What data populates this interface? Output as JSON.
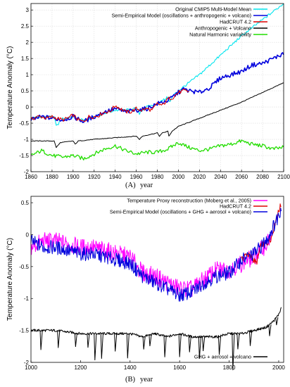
{
  "chart_data": [
    {
      "type": "line",
      "panel_label": "(A)",
      "xlabel": "year",
      "ylabel": "Temperature Anomaly (°C)",
      "xlim": [
        1860,
        2100
      ],
      "ylim": [
        -2,
        3.2
      ],
      "xticks": [
        1860,
        1880,
        1900,
        1920,
        1940,
        1960,
        1980,
        2000,
        2020,
        2040,
        2060,
        2080,
        2100
      ],
      "yticks": [
        -2,
        -1.5,
        -1,
        -0.5,
        0,
        0.5,
        1,
        1.5,
        2,
        2.5,
        3
      ],
      "grid": true,
      "legend_position": "top-right",
      "series": [
        {
          "name": "Original CMIP5 Multi-Model Mean",
          "color": "#00e5ee",
          "x": [
            1860,
            1875,
            1882,
            1884,
            1890,
            1900,
            1910,
            1920,
            1940,
            1950,
            1960,
            1963,
            1965,
            1970,
            1980,
            1990,
            1992,
            1995,
            2000,
            2010,
            2020,
            2040,
            2060,
            2080,
            2100
          ],
          "y": [
            -0.35,
            -0.3,
            -0.3,
            -0.6,
            -0.35,
            -0.3,
            -0.4,
            -0.3,
            -0.1,
            -0.1,
            -0.05,
            -0.2,
            -0.1,
            0.0,
            0.1,
            0.3,
            0.15,
            0.35,
            0.5,
            0.75,
            1.0,
            1.6,
            2.2,
            2.7,
            3.2
          ]
        },
        {
          "name": "Semi-Empirical Model (oscillations + anthropogenic + volcano)",
          "color": "#0000dd",
          "x": [
            1860,
            1870,
            1880,
            1890,
            1900,
            1910,
            1920,
            1930,
            1940,
            1950,
            1960,
            1970,
            1980,
            1990,
            2000,
            2005,
            2010,
            2020,
            2030,
            2040,
            2050,
            2060,
            2070,
            2080,
            2090,
            2100
          ],
          "y": [
            -0.4,
            -0.3,
            -0.35,
            -0.4,
            -0.3,
            -0.45,
            -0.3,
            -0.15,
            -0.05,
            -0.15,
            -0.1,
            -0.05,
            0.1,
            0.2,
            0.45,
            0.55,
            0.5,
            0.45,
            0.6,
            0.9,
            1.0,
            1.1,
            1.3,
            1.35,
            1.5,
            1.65
          ]
        },
        {
          "name": "HadCRUT 4.2",
          "color": "#dd0000",
          "x": [
            1860,
            1865,
            1870,
            1875,
            1880,
            1885,
            1890,
            1895,
            1900,
            1905,
            1910,
            1915,
            1920,
            1925,
            1930,
            1935,
            1940,
            1945,
            1950,
            1955,
            1960,
            1965,
            1970,
            1975,
            1980,
            1985,
            1990,
            1995,
            2000,
            2005,
            2010
          ],
          "y": [
            -0.4,
            -0.3,
            -0.3,
            -0.35,
            -0.3,
            -0.35,
            -0.4,
            -0.35,
            -0.25,
            -0.4,
            -0.45,
            -0.3,
            -0.3,
            -0.25,
            -0.15,
            -0.15,
            0.05,
            -0.05,
            -0.15,
            -0.15,
            -0.05,
            -0.1,
            -0.05,
            -0.1,
            0.1,
            0.05,
            0.25,
            0.3,
            0.45,
            0.5,
            0.48
          ]
        },
        {
          "name": "Anthropogenic + Volcano",
          "color": "#000000",
          "x": [
            1860,
            1875,
            1882,
            1884,
            1888,
            1900,
            1902,
            1905,
            1920,
            1940,
            1960,
            1963,
            1966,
            1980,
            1982,
            1985,
            1990,
            1991,
            1994,
            2000,
            2020,
            2040,
            2060,
            2080,
            2100
          ],
          "y": [
            -1.05,
            -1.05,
            -1.05,
            -1.25,
            -1.1,
            -1.05,
            -1.15,
            -1.05,
            -1.0,
            -0.95,
            -0.9,
            -1.0,
            -0.9,
            -0.8,
            -0.9,
            -0.8,
            -0.75,
            -0.9,
            -0.75,
            -0.6,
            -0.35,
            -0.1,
            0.15,
            0.45,
            0.75
          ]
        },
        {
          "name": "Natural Harmonic variability",
          "color": "#22dd00",
          "x": [
            1860,
            1870,
            1880,
            1890,
            1900,
            1910,
            1920,
            1930,
            1940,
            1950,
            1960,
            1970,
            1980,
            1990,
            2000,
            2010,
            2020,
            2030,
            2040,
            2050,
            2060,
            2070,
            2080,
            2090,
            2100
          ],
          "y": [
            -1.5,
            -1.35,
            -1.5,
            -1.55,
            -1.5,
            -1.6,
            -1.45,
            -1.3,
            -1.2,
            -1.35,
            -1.45,
            -1.4,
            -1.4,
            -1.3,
            -1.1,
            -1.25,
            -1.35,
            -1.3,
            -1.2,
            -1.15,
            -1.05,
            -1.15,
            -1.2,
            -1.3,
            -1.25
          ]
        }
      ]
    },
    {
      "type": "line",
      "panel_label": "(B)",
      "xlabel": "year",
      "ylabel": "Temperature Anomaly (°C)",
      "xlim": [
        1000,
        2020
      ],
      "ylim": [
        -2,
        0.6
      ],
      "xticks": [
        1000,
        1200,
        1400,
        1600,
        1800,
        2000
      ],
      "yticks": [
        -2,
        -1.5,
        -1,
        -0.5,
        0,
        0.5
      ],
      "grid": false,
      "series": [
        {
          "name": "Temperature Proxy reconstruction (Moberg et al., 2005)",
          "color": "#ff00ff",
          "legend_position": "top-right",
          "x": [
            1000,
            1050,
            1100,
            1150,
            1200,
            1250,
            1300,
            1350,
            1400,
            1450,
            1500,
            1550,
            1600,
            1650,
            1700,
            1750,
            1800,
            1850,
            1900,
            1950,
            1979
          ],
          "y": [
            -0.2,
            -0.1,
            -0.1,
            -0.15,
            -0.2,
            -0.2,
            -0.25,
            -0.3,
            -0.35,
            -0.6,
            -0.65,
            -0.75,
            -0.85,
            -0.85,
            -0.7,
            -0.55,
            -0.55,
            -0.45,
            -0.35,
            -0.15,
            0.0
          ]
        },
        {
          "name": "HadCRUT 4.2",
          "color": "#dd0000",
          "legend_position": "top-right",
          "x": [
            1850,
            1870,
            1890,
            1910,
            1930,
            1950,
            1970,
            1990,
            2010
          ],
          "y": [
            -0.4,
            -0.3,
            -0.35,
            -0.45,
            -0.15,
            -0.15,
            -0.05,
            0.25,
            0.48
          ]
        },
        {
          "name": "Semi-Empirical Model (oscillations + GHG + aerosol + volcano)",
          "color": "#0000dd",
          "legend_position": "top-right",
          "x": [
            1000,
            1050,
            1100,
            1150,
            1200,
            1250,
            1300,
            1350,
            1400,
            1450,
            1500,
            1550,
            1600,
            1650,
            1700,
            1750,
            1800,
            1850,
            1900,
            1950,
            2000,
            2010
          ],
          "y": [
            -0.1,
            -0.2,
            -0.2,
            -0.25,
            -0.3,
            -0.3,
            -0.35,
            -0.4,
            -0.45,
            -0.65,
            -0.75,
            -0.85,
            -0.95,
            -0.9,
            -0.75,
            -0.65,
            -0.6,
            -0.4,
            -0.3,
            -0.1,
            0.3,
            0.45
          ]
        },
        {
          "name": "GHG + aerosol + volcano",
          "color": "#000000",
          "legend_position": "bottom-right",
          "x": [
            1000,
            1100,
            1200,
            1300,
            1400,
            1450,
            1500,
            1550,
            1600,
            1650,
            1700,
            1750,
            1800,
            1850,
            1900,
            1950,
            1980,
            2000,
            2010
          ],
          "y": [
            -1.5,
            -1.5,
            -1.55,
            -1.55,
            -1.55,
            -1.6,
            -1.55,
            -1.6,
            -1.55,
            -1.6,
            -1.6,
            -1.6,
            -1.55,
            -1.55,
            -1.5,
            -1.45,
            -1.35,
            -1.25,
            -1.15
          ]
        }
      ]
    }
  ]
}
